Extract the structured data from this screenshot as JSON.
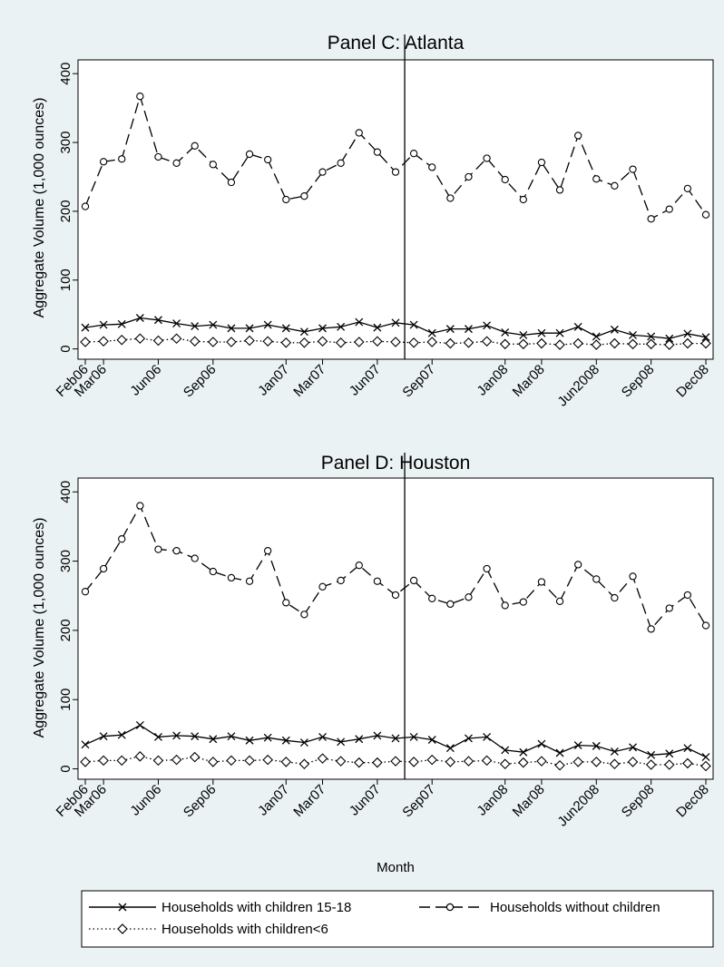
{
  "chart_data": [
    {
      "type": "line",
      "title": "Panel C: Atlanta",
      "ylabel": "Aggregate Volume (1,000 ounces)",
      "xlabel": "",
      "ylim": [
        -15,
        420
      ],
      "yticks": [
        0,
        100,
        200,
        300,
        400
      ],
      "x_tick_labels": [
        {
          "i": 0,
          "label": "Feb06"
        },
        {
          "i": 1,
          "label": "Mar06"
        },
        {
          "i": 4,
          "label": "Jun06"
        },
        {
          "i": 7,
          "label": "Sep06"
        },
        {
          "i": 11,
          "label": "Jan07"
        },
        {
          "i": 13,
          "label": "Mar07"
        },
        {
          "i": 16,
          "label": "Jun07"
        },
        {
          "i": 19,
          "label": "Sep07"
        },
        {
          "i": 23,
          "label": "Jan08"
        },
        {
          "i": 25,
          "label": "Mar08"
        },
        {
          "i": 28,
          "label": "Jun2008"
        },
        {
          "i": 31,
          "label": "Sep08"
        },
        {
          "i": 34,
          "label": "Dec08"
        }
      ],
      "vline_index": 17.5,
      "series": [
        {
          "name": "Households with children 15-18",
          "marker": "x",
          "style": "solid",
          "values": [
            31,
            35,
            36,
            45,
            42,
            37,
            33,
            35,
            30,
            30,
            35,
            30,
            25,
            30,
            32,
            39,
            31,
            38,
            35,
            23,
            29,
            29,
            34,
            24,
            20,
            23,
            23,
            32,
            18,
            28,
            20,
            18,
            15,
            22,
            17
          ]
        },
        {
          "name": "Households without children",
          "marker": "circle",
          "style": "longdash",
          "values": [
            207,
            272,
            276,
            367,
            279,
            270,
            295,
            268,
            242,
            283,
            275,
            217,
            222,
            257,
            270,
            314,
            286,
            257,
            284,
            264,
            219,
            250,
            277,
            246,
            217,
            271,
            231,
            310,
            247,
            237,
            261,
            189,
            203,
            233,
            195
          ]
        },
        {
          "name": "Households with children<6",
          "marker": "diamond",
          "style": "dotted",
          "values": [
            10,
            11,
            13,
            15,
            12,
            15,
            11,
            10,
            10,
            12,
            11,
            9,
            9,
            11,
            9,
            10,
            11,
            10,
            9,
            10,
            8,
            9,
            11,
            7,
            7,
            8,
            6,
            8,
            6,
            8,
            7,
            7,
            6,
            8,
            8
          ]
        }
      ]
    },
    {
      "type": "line",
      "title": "Panel D: Houston",
      "ylabel": "Aggregate Volume (1,000 ounces)",
      "xlabel": "Month",
      "ylim": [
        -15,
        420
      ],
      "yticks": [
        0,
        100,
        200,
        300,
        400
      ],
      "x_tick_labels": [
        {
          "i": 0,
          "label": "Feb06"
        },
        {
          "i": 1,
          "label": "Mar06"
        },
        {
          "i": 4,
          "label": "Jun06"
        },
        {
          "i": 7,
          "label": "Sep06"
        },
        {
          "i": 11,
          "label": "Jan07"
        },
        {
          "i": 13,
          "label": "Mar07"
        },
        {
          "i": 16,
          "label": "Jun07"
        },
        {
          "i": 19,
          "label": "Sep07"
        },
        {
          "i": 23,
          "label": "Jan08"
        },
        {
          "i": 25,
          "label": "Mar08"
        },
        {
          "i": 28,
          "label": "Jun2008"
        },
        {
          "i": 31,
          "label": "Sep08"
        },
        {
          "i": 34,
          "label": "Dec08"
        }
      ],
      "vline_index": 17.5,
      "series": [
        {
          "name": "Households with children 15-18",
          "marker": "x",
          "style": "solid",
          "values": [
            35,
            47,
            49,
            63,
            46,
            48,
            47,
            43,
            47,
            41,
            45,
            41,
            38,
            46,
            39,
            43,
            48,
            44,
            46,
            42,
            30,
            44,
            46,
            27,
            24,
            36,
            23,
            34,
            33,
            25,
            31,
            20,
            22,
            30,
            17
          ]
        },
        {
          "name": "Households without children",
          "marker": "circle",
          "style": "longdash",
          "values": [
            256,
            289,
            332,
            380,
            317,
            315,
            304,
            285,
            276,
            271,
            315,
            240,
            223,
            263,
            272,
            294,
            271,
            251,
            272,
            246,
            238,
            248,
            289,
            236,
            241,
            270,
            242,
            295,
            274,
            247,
            278,
            202,
            232,
            251,
            207
          ]
        },
        {
          "name": "Households with children<6",
          "marker": "diamond",
          "style": "dotted",
          "values": [
            10,
            12,
            12,
            18,
            12,
            13,
            17,
            10,
            12,
            12,
            13,
            10,
            7,
            15,
            11,
            9,
            9,
            11,
            10,
            13,
            10,
            11,
            12,
            7,
            9,
            11,
            5,
            10,
            10,
            7,
            10,
            6,
            6,
            8,
            4
          ]
        }
      ]
    }
  ],
  "legend": {
    "items": [
      {
        "label": "Households with children 15-18",
        "marker": "x",
        "style": "solid"
      },
      {
        "label": "Households without children",
        "marker": "circle",
        "style": "longdash"
      },
      {
        "label": "Households with children<6",
        "marker": "diamond",
        "style": "dotted"
      }
    ]
  }
}
